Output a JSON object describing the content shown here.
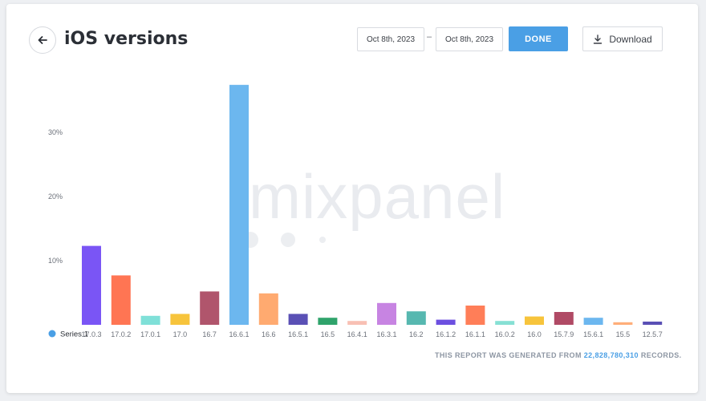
{
  "header": {
    "title": "iOS versions",
    "date_from": "Oct 8th, 2023",
    "date_separator": "–",
    "date_to": "Oct 8th, 2023",
    "done_label": "DONE",
    "download_label": "Download"
  },
  "watermark": "mixpanel",
  "footer": {
    "prefix": "THIS REPORT WAS GENERATED FROM",
    "records": "22,828,780,310",
    "suffix": "RECORDS."
  },
  "colors": {
    "accent": "#4a9fe5",
    "bars": [
      "#7a55f5",
      "#ff7553",
      "#7fe0d8",
      "#f7c43c",
      "#b0556c",
      "#6cb7ef",
      "#ffaa70",
      "#5a50b5",
      "#2fa36b",
      "#f8c0b4",
      "#c784e2",
      "#57b8b0",
      "#6c4fe0",
      "#ff7e58",
      "#86e0d4",
      "#f7c43c",
      "#b04a65",
      "#6cb7ef",
      "#ffae7a",
      "#5a50b5"
    ]
  },
  "chart_data": {
    "type": "bar",
    "categories": [
      "17.0.3",
      "17.0.2",
      "17.0.1",
      "17.0",
      "16.7",
      "16.6.1",
      "16.6",
      "16.5.1",
      "16.5",
      "16.4.1",
      "16.3.1",
      "16.2",
      "16.1.2",
      "16.1.1",
      "16.0.2",
      "16.0",
      "15.7.9",
      "15.6.1",
      "15.5",
      "12.5.7"
    ],
    "series": [
      {
        "name": "Series 1",
        "values": [
          12.3,
          7.7,
          1.4,
          1.7,
          5.2,
          37.4,
          4.9,
          1.7,
          1.1,
          0.6,
          3.4,
          2.1,
          0.8,
          3.0,
          0.6,
          1.3,
          2.0,
          1.1,
          0.4,
          0.5
        ]
      }
    ],
    "y_ticks": [
      "10%",
      "20%",
      "30%"
    ],
    "y_tick_values": [
      10,
      20,
      30
    ],
    "ylim": [
      0,
      40
    ],
    "grid": false,
    "legend_position": "bottom-left"
  }
}
